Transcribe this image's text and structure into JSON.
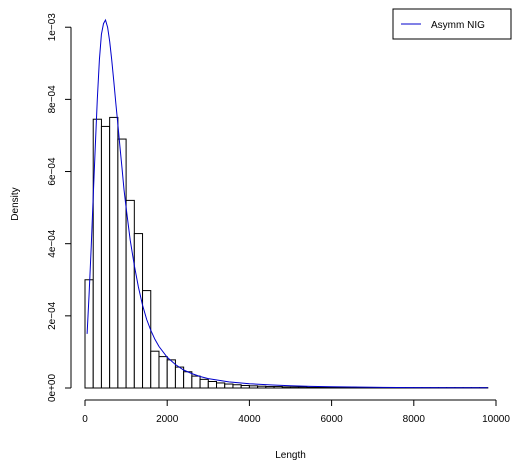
{
  "chart_data": {
    "type": "bar",
    "title": "",
    "xlabel": "Length",
    "ylabel": "Density",
    "xlim": [
      0,
      10000
    ],
    "ylim": [
      0,
      0.00102
    ],
    "x_ticks": [
      0,
      2000,
      4000,
      6000,
      8000,
      10000
    ],
    "x_tick_labels": [
      "0",
      "2000",
      "4000",
      "6000",
      "8000",
      "10000"
    ],
    "y_ticks": [
      0,
      0.0002,
      0.0004,
      0.0006,
      0.0008,
      0.001
    ],
    "y_tick_labels": [
      "0e+00",
      "2e−04",
      "4e−04",
      "6e−04",
      "8e−04",
      "1e−03"
    ],
    "histogram": {
      "bin_width": 200,
      "bin_starts": [
        0,
        200,
        400,
        600,
        800,
        1000,
        1200,
        1400,
        1600,
        1800,
        2000,
        2200,
        2400,
        2600,
        2800,
        3000,
        3200,
        3400,
        3600,
        3800,
        4000,
        4200,
        4400,
        4600,
        4800,
        5000,
        5200,
        5400,
        5600,
        5800,
        6000,
        6200,
        6400,
        6600,
        6800,
        7000,
        7200,
        7400,
        7600,
        7800,
        8000,
        8200,
        8400,
        8600,
        8800,
        9000,
        9200,
        9400,
        9600
      ],
      "densities": [
        0.0003,
        0.000745,
        0.000725,
        0.00075,
        0.00069,
        0.00052,
        0.000428,
        0.00027,
        0.000102,
        8.7e-05,
        7.8e-05,
        5.8e-05,
        4.5e-05,
        3.3e-05,
        2.4e-05,
        1.8e-05,
        1.4e-05,
        1.1e-05,
        9e-06,
        7e-06,
        6e-06,
        5e-06,
        4e-06,
        4e-06,
        3e-06,
        3e-06,
        3e-06,
        2e-06,
        2e-06,
        2e-06,
        2e-06,
        2e-06,
        2e-06,
        1e-06,
        1e-06,
        1e-06,
        1e-06,
        1e-06,
        1e-06,
        1e-06,
        1e-06,
        1e-06,
        1e-06,
        1e-06,
        1e-06,
        1e-06,
        1e-06,
        1e-06,
        1e-06
      ]
    },
    "series": [
      {
        "name": "Asymm NIG",
        "type": "line",
        "color": "#0000cc",
        "x": [
          50,
          100,
          150,
          200,
          250,
          300,
          350,
          400,
          450,
          500,
          550,
          600,
          650,
          700,
          750,
          800,
          850,
          900,
          950,
          1000,
          1100,
          1200,
          1300,
          1400,
          1500,
          1600,
          1700,
          1800,
          2000,
          2200,
          2400,
          2600,
          2800,
          3000,
          3500,
          4000,
          4500,
          5000,
          5500,
          6000,
          7000,
          8000,
          9000,
          9800
        ],
        "y": [
          0.00015,
          0.00026,
          0.00039,
          0.00053,
          0.00067,
          0.0008,
          0.00091,
          0.00098,
          0.00101,
          0.00102,
          0.001,
          0.00096,
          0.00091,
          0.00085,
          0.00079,
          0.00073,
          0.00067,
          0.00061,
          0.00055,
          0.0005,
          0.00041,
          0.00034,
          0.00028,
          0.00023,
          0.00019,
          0.00016,
          0.000135,
          0.000115,
          8.5e-05,
          6.5e-05,
          5e-05,
          4e-05,
          3.2e-05,
          2.6e-05,
          1.7e-05,
          1.2e-05,
          8.5e-06,
          6e-06,
          4.5e-06,
          3.5e-06,
          2e-06,
          1.2e-06,
          8e-07,
          5e-07
        ]
      }
    ],
    "legend": {
      "position": "top-right",
      "entries": [
        "Asymm NIG"
      ]
    },
    "grid": false
  }
}
